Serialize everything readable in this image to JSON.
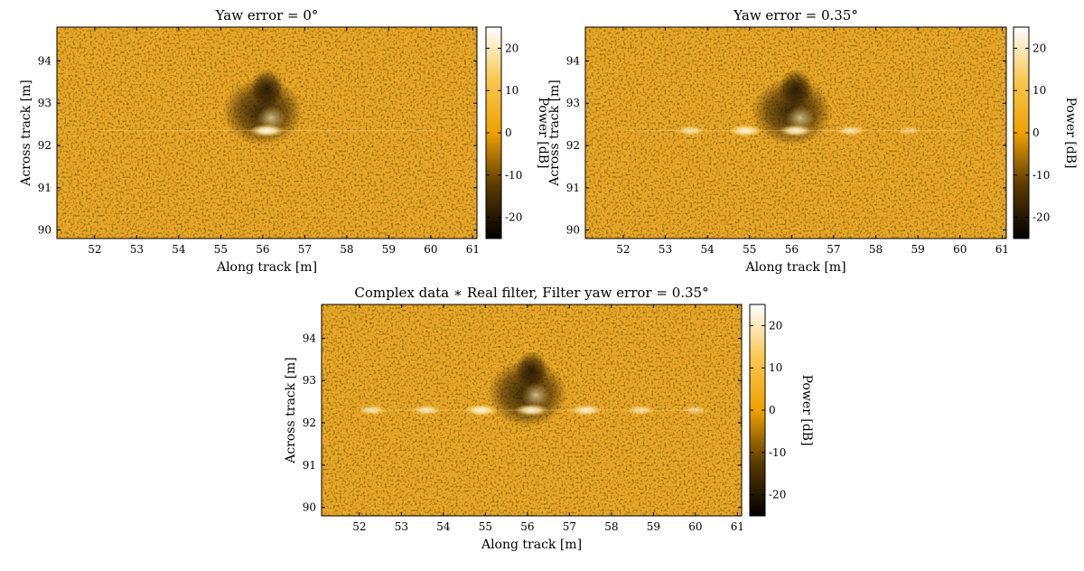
{
  "chart_data": [
    {
      "type": "heatmap",
      "title": "Yaw error = 0°",
      "xlabel": "Along track [m]",
      "ylabel": "Across track [m]",
      "xlim": [
        51.1,
        61.1
      ],
      "ylim": [
        89.8,
        94.8
      ],
      "xticks": [
        52,
        53,
        54,
        55,
        56,
        57,
        58,
        59,
        60,
        61
      ],
      "yticks": [
        90,
        91,
        92,
        93,
        94
      ],
      "colorbar": {
        "label": "Power [dB]",
        "range": [
          -25,
          25
        ],
        "ticks": [
          20,
          10,
          0,
          -10,
          -20
        ]
      },
      "features": {
        "shadow_center": [
          56.0,
          92.8
        ],
        "bright_spots": [
          {
            "x": 56.1,
            "y": 92.35,
            "level": 1.0
          }
        ]
      }
    },
    {
      "type": "heatmap",
      "title": "Yaw error = 0.35°",
      "xlabel": "Along track [m]",
      "ylabel": "Across track [m]",
      "xlim": [
        51.1,
        61.1
      ],
      "ylim": [
        89.8,
        94.8
      ],
      "xticks": [
        52,
        53,
        54,
        55,
        56,
        57,
        58,
        59,
        60,
        61
      ],
      "yticks": [
        90,
        91,
        92,
        93,
        94
      ],
      "colorbar": {
        "label": "Power [dB]",
        "range": [
          -25,
          25
        ],
        "ticks": [
          20,
          10,
          0,
          -10,
          -20
        ]
      },
      "features": {
        "shadow_center": [
          56.0,
          92.8
        ],
        "bright_spots": [
          {
            "x": 53.6,
            "y": 92.35,
            "level": 0.6
          },
          {
            "x": 54.9,
            "y": 92.35,
            "level": 0.9
          },
          {
            "x": 56.1,
            "y": 92.35,
            "level": 0.9
          },
          {
            "x": 57.4,
            "y": 92.35,
            "level": 0.6
          },
          {
            "x": 58.8,
            "y": 92.35,
            "level": 0.25
          }
        ]
      }
    },
    {
      "type": "heatmap",
      "title": "Complex data ∗ Real filter, Filter yaw error = 0.35°",
      "xlabel": "Along track [m]",
      "ylabel": "Across track [m]",
      "xlim": [
        51.1,
        61.1
      ],
      "ylim": [
        89.8,
        94.8
      ],
      "xticks": [
        52,
        53,
        54,
        55,
        56,
        57,
        58,
        59,
        60,
        61
      ],
      "yticks": [
        90,
        91,
        92,
        93,
        94
      ],
      "colorbar": {
        "label": "Power [dB]",
        "range": [
          -25,
          25
        ],
        "ticks": [
          20,
          10,
          0,
          -10,
          -20
        ]
      },
      "features": {
        "shadow_center": [
          56.0,
          92.7
        ],
        "bright_spots": [
          {
            "x": 52.3,
            "y": 92.3,
            "level": 0.6
          },
          {
            "x": 53.6,
            "y": 92.3,
            "level": 0.65
          },
          {
            "x": 54.9,
            "y": 92.3,
            "level": 0.9
          },
          {
            "x": 56.1,
            "y": 92.3,
            "level": 0.9
          },
          {
            "x": 57.4,
            "y": 92.3,
            "level": 0.8
          },
          {
            "x": 58.7,
            "y": 92.3,
            "level": 0.55
          },
          {
            "x": 60.0,
            "y": 92.3,
            "level": 0.35
          }
        ]
      }
    }
  ]
}
